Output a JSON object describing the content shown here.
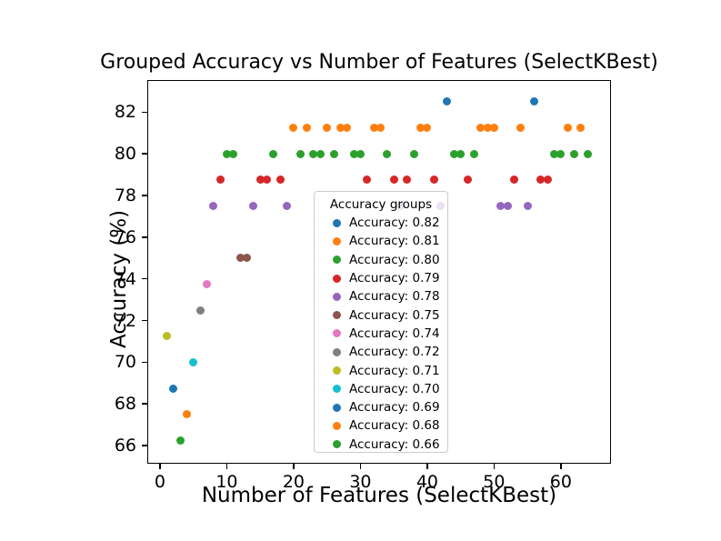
{
  "figure": {
    "background": "#ffffff",
    "title": "Grouped Accuracy vs Number of Features (SelectKBest)"
  },
  "chart_data": {
    "type": "scatter",
    "title": "Grouped Accuracy vs Number of Features (SelectKBest)",
    "xlabel": "Number of Features (SelectKBest)",
    "ylabel": "Accuracy (%)",
    "xlim": [
      -1.9,
      67.5
    ],
    "ylim": [
      65.13,
      83.54
    ],
    "xticks": [
      0,
      10,
      20,
      30,
      40,
      50,
      60
    ],
    "yticks": [
      66,
      68,
      70,
      72,
      74,
      76,
      78,
      80,
      82
    ],
    "grid": false,
    "legend": {
      "title": "Accuracy groups",
      "position": "center",
      "entries": [
        {
          "label": "Accuracy: 0.82",
          "color": "#1f77b4"
        },
        {
          "label": "Accuracy: 0.81",
          "color": "#ff7f0e"
        },
        {
          "label": "Accuracy: 0.80",
          "color": "#2ca02c"
        },
        {
          "label": "Accuracy: 0.79",
          "color": "#d62728"
        },
        {
          "label": "Accuracy: 0.78",
          "color": "#9467bd"
        },
        {
          "label": "Accuracy: 0.75",
          "color": "#8c564b"
        },
        {
          "label": "Accuracy: 0.74",
          "color": "#e377c2"
        },
        {
          "label": "Accuracy: 0.72",
          "color": "#7f7f7f"
        },
        {
          "label": "Accuracy: 0.71",
          "color": "#bcbd22"
        },
        {
          "label": "Accuracy: 0.70",
          "color": "#17becf"
        },
        {
          "label": "Accuracy: 0.69",
          "color": "#1f77b4"
        },
        {
          "label": "Accuracy: 0.68",
          "color": "#ff7f0e"
        },
        {
          "label": "Accuracy: 0.66",
          "color": "#2ca02c"
        }
      ]
    },
    "series": [
      {
        "name": "Accuracy: 0.82",
        "color": "#1f77b4",
        "points": [
          [
            43,
            82.5
          ],
          [
            56,
            82.5
          ]
        ]
      },
      {
        "name": "Accuracy: 0.81",
        "color": "#ff7f0e",
        "points": [
          [
            20,
            81.25
          ],
          [
            22,
            81.25
          ],
          [
            25,
            81.25
          ],
          [
            27,
            81.25
          ],
          [
            28,
            81.25
          ],
          [
            32,
            81.25
          ],
          [
            33,
            81.25
          ],
          [
            39,
            81.25
          ],
          [
            40,
            81.25
          ],
          [
            48,
            81.25
          ],
          [
            49,
            81.25
          ],
          [
            50,
            81.25
          ],
          [
            54,
            81.25
          ],
          [
            61,
            81.25
          ],
          [
            63,
            81.25
          ]
        ]
      },
      {
        "name": "Accuracy: 0.80",
        "color": "#2ca02c",
        "points": [
          [
            10,
            80.0
          ],
          [
            11,
            80.0
          ],
          [
            17,
            80.0
          ],
          [
            21,
            80.0
          ],
          [
            23,
            80.0
          ],
          [
            24,
            80.0
          ],
          [
            26,
            80.0
          ],
          [
            29,
            80.0
          ],
          [
            30,
            80.0
          ],
          [
            34,
            80.0
          ],
          [
            38,
            80.0
          ],
          [
            44,
            80.0
          ],
          [
            45,
            80.0
          ],
          [
            47,
            80.0
          ],
          [
            59,
            80.0
          ],
          [
            60,
            80.0
          ],
          [
            62,
            80.0
          ],
          [
            64,
            80.0
          ]
        ]
      },
      {
        "name": "Accuracy: 0.79",
        "color": "#d62728",
        "points": [
          [
            9,
            78.75
          ],
          [
            15,
            78.75
          ],
          [
            16,
            78.75
          ],
          [
            18,
            78.75
          ],
          [
            31,
            78.75
          ],
          [
            35,
            78.75
          ],
          [
            37,
            78.75
          ],
          [
            41,
            78.75
          ],
          [
            46,
            78.75
          ],
          [
            53,
            78.75
          ],
          [
            57,
            78.75
          ],
          [
            58,
            78.75
          ]
        ]
      },
      {
        "name": "Accuracy: 0.78",
        "color": "#9467bd",
        "points": [
          [
            8,
            77.5
          ],
          [
            14,
            77.5
          ],
          [
            19,
            77.5
          ],
          [
            36,
            77.5
          ],
          [
            42,
            77.5
          ],
          [
            51,
            77.5
          ],
          [
            52,
            77.5
          ],
          [
            55,
            77.5
          ]
        ]
      },
      {
        "name": "Accuracy: 0.75",
        "color": "#8c564b",
        "points": [
          [
            12,
            75.0
          ],
          [
            13,
            75.0
          ]
        ]
      },
      {
        "name": "Accuracy: 0.74",
        "color": "#e377c2",
        "points": [
          [
            7,
            73.75
          ]
        ]
      },
      {
        "name": "Accuracy: 0.72",
        "color": "#7f7f7f",
        "points": [
          [
            6,
            72.5
          ]
        ]
      },
      {
        "name": "Accuracy: 0.71",
        "color": "#bcbd22",
        "points": [
          [
            1,
            71.25
          ]
        ]
      },
      {
        "name": "Accuracy: 0.70",
        "color": "#17becf",
        "points": [
          [
            5,
            70.0
          ]
        ]
      },
      {
        "name": "Accuracy: 0.69",
        "color": "#1f77b4",
        "points": [
          [
            2,
            68.75
          ]
        ]
      },
      {
        "name": "Accuracy: 0.68",
        "color": "#ff7f0e",
        "points": [
          [
            4,
            67.5
          ]
        ]
      },
      {
        "name": "Accuracy: 0.66",
        "color": "#2ca02c",
        "points": [
          [
            3,
            66.25
          ]
        ]
      }
    ]
  }
}
